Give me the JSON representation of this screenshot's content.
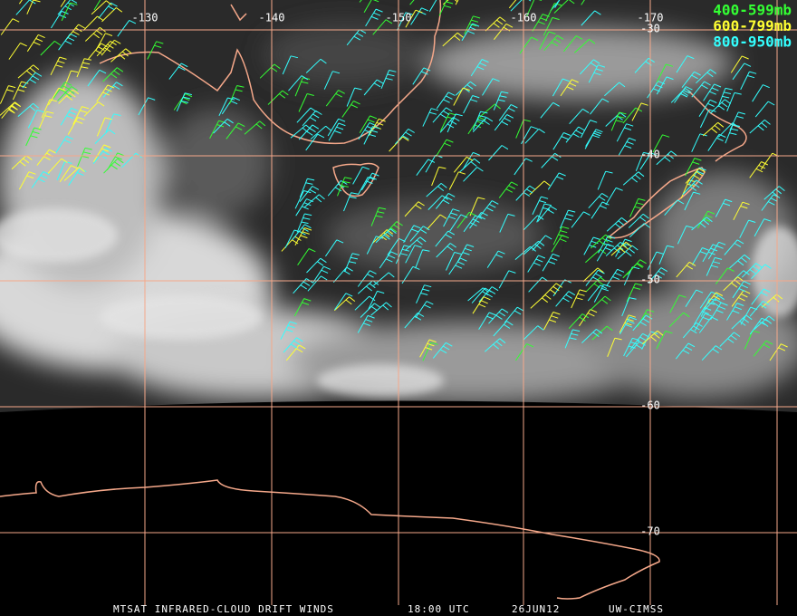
{
  "map": {
    "longitude_labels": [
      "-130",
      "-140",
      "-150",
      "-160",
      "-170"
    ],
    "latitude_labels": [
      "-30",
      "-40",
      "-50",
      "-60",
      "-70"
    ],
    "legend": [
      {
        "label": "400-599mb",
        "color": "#33ff33"
      },
      {
        "label": "600-799mb",
        "color": "#ffff33"
      },
      {
        "label": "800-950mb",
        "color": "#33ffff"
      }
    ],
    "footer": {
      "title": "MTSAT INFRARED-CLOUD DRIFT WINDS",
      "time": "18:00 UTC",
      "date": "26JUN12",
      "source": "UW-CIMSS"
    }
  }
}
